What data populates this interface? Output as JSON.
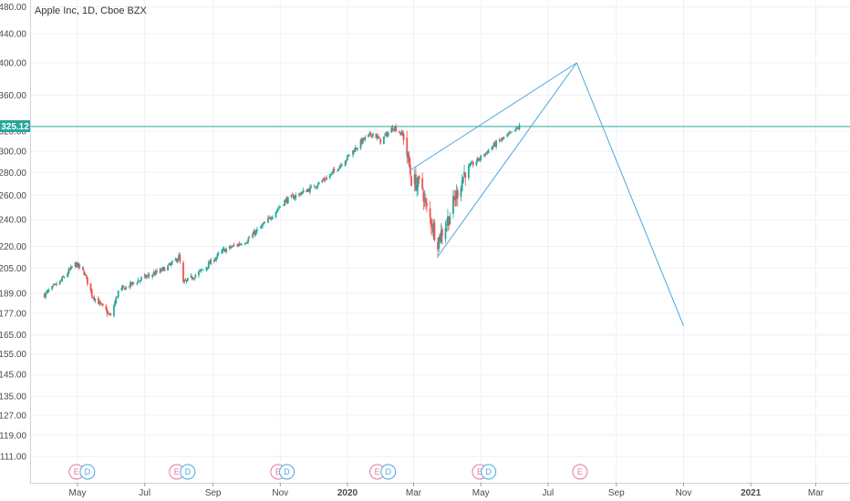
{
  "chart_data": {
    "type": "candlestick",
    "title": "Apple Inc, 1D, Cboe BZX",
    "scale": "log",
    "ylim": [
      104,
      480
    ],
    "grid": true,
    "y_ticks": [
      "480.00",
      "440.00",
      "400.00",
      "360.00",
      "320.00",
      "300.00",
      "280.00",
      "260.00",
      "240.00",
      "220.00",
      "205.00",
      "189.00",
      "177.00",
      "165.00",
      "155.00",
      "145.00",
      "135.00",
      "127.00",
      "119.00",
      "111.00"
    ],
    "x_ticks": [
      "May",
      "Jul",
      "Sep",
      "Nov",
      "2020",
      "Mar",
      "May",
      "Jul",
      "Sep",
      "Nov",
      "2021",
      "Mar"
    ],
    "x_range": [
      "2019-04-01",
      "2021-03-31"
    ],
    "last_price": "325.12",
    "price_path": [
      [
        "2019-04-01",
        188
      ],
      [
        "2019-04-15",
        196
      ],
      [
        "2019-04-29",
        208
      ],
      [
        "2019-05-07",
        202
      ],
      [
        "2019-05-14",
        188
      ],
      [
        "2019-05-31",
        175
      ],
      [
        "2019-06-07",
        190
      ],
      [
        "2019-06-28",
        198
      ],
      [
        "2019-07-15",
        203
      ],
      [
        "2019-07-26",
        208
      ],
      [
        "2019-08-01",
        213
      ],
      [
        "2019-08-05",
        195
      ],
      [
        "2019-08-23",
        204
      ],
      [
        "2019-09-10",
        217
      ],
      [
        "2019-10-01",
        224
      ],
      [
        "2019-10-18",
        237
      ],
      [
        "2019-11-05",
        255
      ],
      [
        "2019-11-29",
        266
      ],
      [
        "2019-12-16",
        277
      ],
      [
        "2019-12-31",
        293
      ],
      [
        "2020-01-15",
        311
      ],
      [
        "2020-01-24",
        318
      ],
      [
        "2020-01-31",
        310
      ],
      [
        "2020-02-12",
        325
      ],
      [
        "2020-02-21",
        315
      ],
      [
        "2020-02-28",
        274
      ],
      [
        "2020-03-09",
        266
      ],
      [
        "2020-03-12",
        250
      ],
      [
        "2020-03-23",
        224
      ],
      [
        "2020-04-02",
        242
      ],
      [
        "2020-04-17",
        282
      ],
      [
        "2020-04-30",
        293
      ],
      [
        "2020-05-15",
        308
      ],
      [
        "2020-05-29",
        318
      ],
      [
        "2020-06-05",
        325
      ]
    ],
    "drawings": {
      "wedge_upper": [
        [
          "2020-02-27",
          282
        ],
        [
          "2020-07-27",
          400
        ]
      ],
      "wedge_lower": [
        [
          "2020-03-23",
          213
        ],
        [
          "2020-07-27",
          400
        ]
      ],
      "projection": [
        [
          "2020-07-27",
          400
        ],
        [
          "2020-11-01",
          170
        ]
      ],
      "price_line": 325.12
    },
    "events": [
      {
        "date": "2019-04-30",
        "type": "E"
      },
      {
        "date": "2019-05-10",
        "type": "D"
      },
      {
        "date": "2019-07-30",
        "type": "E"
      },
      {
        "date": "2019-08-09",
        "type": "D"
      },
      {
        "date": "2019-10-30",
        "type": "E"
      },
      {
        "date": "2019-11-07",
        "type": "D"
      },
      {
        "date": "2020-01-28",
        "type": "E"
      },
      {
        "date": "2020-02-07",
        "type": "D"
      },
      {
        "date": "2020-04-30",
        "type": "E"
      },
      {
        "date": "2020-05-08",
        "type": "D"
      },
      {
        "date": "2020-07-30",
        "type": "E"
      }
    ],
    "colors": {
      "up": "#26a69a",
      "down": "#ef5350",
      "line": "#4aa8e0",
      "price": "#26a69a",
      "grid": "#eef0f4",
      "event_e": "#e8779a",
      "event_d": "#4aa8e0"
    }
  }
}
